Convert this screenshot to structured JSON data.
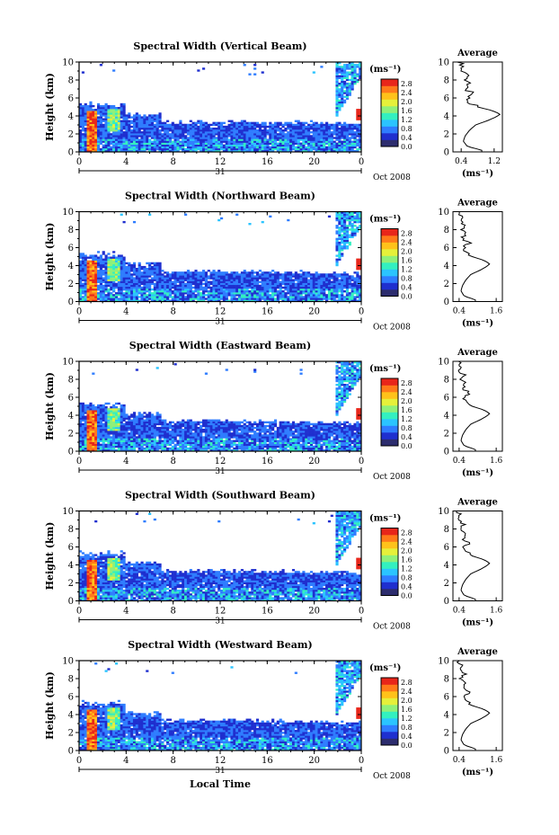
{
  "chart_data": {
    "type": "heatmap",
    "shared": {
      "ylabel": "Height (km)",
      "ylim": [
        0,
        10
      ],
      "yticks": [
        "0",
        "2",
        "4",
        "6",
        "8",
        "10"
      ],
      "xlim": [
        0,
        24
      ],
      "xticks": [
        "0",
        "4",
        "8",
        "12",
        "16",
        "20",
        "0"
      ],
      "day_label": "31",
      "month_label": "Oct 2008",
      "xlabel": "Local Time",
      "colorbar_unit": "(ms⁻¹)",
      "colorbar_ticks": [
        "0.0",
        "0.4",
        "0.8",
        "1.2",
        "1.6",
        "2.0",
        "2.4",
        "2.8"
      ],
      "colorbar_range": [
        0,
        3.0
      ],
      "colormap": [
        "#2d2d6e",
        "#1f2fcf",
        "#2f7dff",
        "#2bc4ff",
        "#33f0c0",
        "#8ff07a",
        "#e6f03a",
        "#ffc21a",
        "#ff7a1a",
        "#e8261a"
      ],
      "avg_title": "Average",
      "avg_unit": "(ms⁻¹)",
      "avg_yticks": [
        "0",
        "2",
        "4",
        "6",
        "8",
        "10"
      ]
    },
    "panels": [
      {
        "title": "Spectral Width (Vertical Beam)",
        "avg_xticks": [
          "0.4",
          "1.2"
        ],
        "avg_xlim": [
          0.2,
          1.4
        ]
      },
      {
        "title": "Spectral Width (Northward Beam)",
        "avg_xticks": [
          "0.4",
          "1.6"
        ],
        "avg_xlim": [
          0.2,
          1.8
        ]
      },
      {
        "title": "Spectral Width (Eastward Beam)",
        "avg_xticks": [
          "0.4",
          "1.6"
        ],
        "avg_xlim": [
          0.2,
          1.8
        ]
      },
      {
        "title": "Spectral Width (Southward Beam)",
        "avg_xticks": [
          "0.4",
          "1.6"
        ],
        "avg_xlim": [
          0.2,
          1.8
        ]
      },
      {
        "title": "Spectral Width (Westward Beam)",
        "avg_xticks": [
          "0.4",
          "1.6"
        ],
        "avg_xlim": [
          0.2,
          1.8
        ]
      }
    ],
    "average_profile": [
      [
        0.2,
        0.9
      ],
      [
        0.6,
        0.55
      ],
      [
        1.2,
        0.45
      ],
      [
        1.8,
        0.5
      ],
      [
        2.4,
        0.6
      ],
      [
        3.0,
        0.75
      ],
      [
        3.5,
        1.05
      ],
      [
        3.9,
        1.25
      ],
      [
        4.2,
        1.35
      ],
      [
        4.6,
        1.15
      ],
      [
        5.0,
        0.8
      ],
      [
        5.5,
        0.6
      ],
      [
        6.0,
        0.55
      ],
      [
        6.5,
        0.7
      ],
      [
        7.0,
        0.5
      ],
      [
        7.5,
        0.6
      ],
      [
        8.0,
        0.45
      ],
      [
        8.5,
        0.55
      ],
      [
        9.0,
        0.4
      ],
      [
        9.5,
        0.45
      ],
      [
        10.0,
        0.35
      ]
    ]
  }
}
